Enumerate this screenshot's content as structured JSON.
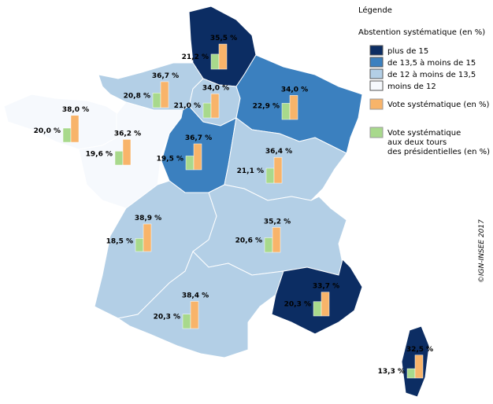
{
  "legend": {
    "title": "Légende",
    "subtitle": "Abstention systématique (en %)",
    "classes": [
      {
        "label": "plus de 15",
        "color": "#0c2d63"
      },
      {
        "label": "de 13,5 à moins de 15",
        "color": "#3b80bf"
      },
      {
        "label": "de 12 à moins de 13,5",
        "color": "#b3cfe6"
      },
      {
        "label": "moins de 12",
        "color": "#f6f9fd"
      }
    ],
    "series": [
      {
        "label": [
          "Vote systématique (en %)"
        ],
        "color": "#f8b46a"
      },
      {
        "label": [
          "Vote systématique",
          "aux deux tours",
          "des présidentielles (en %)"
        ],
        "color": "#a8d98c"
      }
    ]
  },
  "credit": "©IGN-INSEE 2017",
  "regions": [
    {
      "fill": "#0c2d63",
      "vote": 35.5,
      "vote_label": "35,5 %",
      "deux_tours": 21.2,
      "deux_tours_label": "21,2 %"
    },
    {
      "fill": "#b3cfe6",
      "vote": 36.7,
      "vote_label": "36,7 %",
      "deux_tours": 20.8,
      "deux_tours_label": "20,8 %"
    },
    {
      "fill": "#b3cfe6",
      "vote": 34.0,
      "vote_label": "34,0 %",
      "deux_tours": 21.0,
      "deux_tours_label": "21,0 %"
    },
    {
      "fill": "#3b80bf",
      "vote": 34.0,
      "vote_label": "34,0 %",
      "deux_tours": 22.9,
      "deux_tours_label": "22,9 %"
    },
    {
      "fill": "#f6f9fd",
      "vote": 38.0,
      "vote_label": "38,0 %",
      "deux_tours": 20.0,
      "deux_tours_label": "20,0 %"
    },
    {
      "fill": "#f6f9fd",
      "vote": 36.2,
      "vote_label": "36,2 %",
      "deux_tours": 19.6,
      "deux_tours_label": "19,6 %"
    },
    {
      "fill": "#3b80bf",
      "vote": 36.7,
      "vote_label": "36,7 %",
      "deux_tours": 19.5,
      "deux_tours_label": "19,5 %"
    },
    {
      "fill": "#b3cfe6",
      "vote": 36.4,
      "vote_label": "36,4 %",
      "deux_tours": 21.1,
      "deux_tours_label": "21,1 %"
    },
    {
      "fill": "#b3cfe6",
      "vote": 38.9,
      "vote_label": "38,9 %",
      "deux_tours": 18.5,
      "deux_tours_label": "18,5 %"
    },
    {
      "fill": "#b3cfe6",
      "vote": 35.2,
      "vote_label": "35,2 %",
      "deux_tours": 20.6,
      "deux_tours_label": "20,6 %"
    },
    {
      "fill": "#b3cfe6",
      "vote": 38.4,
      "vote_label": "38,4 %",
      "deux_tours": 20.3,
      "deux_tours_label": "20,3 %"
    },
    {
      "fill": "#0c2d63",
      "vote": 33.7,
      "vote_label": "33,7 %",
      "deux_tours": 20.3,
      "deux_tours_label": "20,3 %"
    },
    {
      "fill": "#0c2d63",
      "vote": 32.5,
      "vote_label": "32,5 %",
      "deux_tours": 13.3,
      "deux_tours_label": "13,3 %"
    }
  ]
}
